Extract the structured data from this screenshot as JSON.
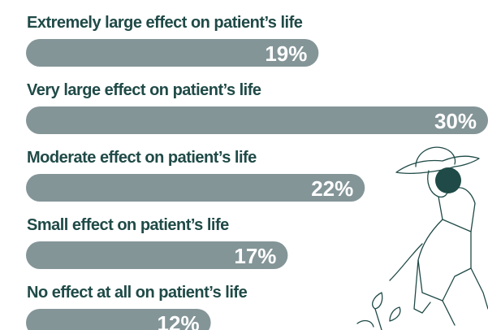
{
  "chart_data": {
    "type": "bar",
    "orientation": "horizontal",
    "categories": [
      "Extremely large effect on patient’s life",
      "Very large effect on patient’s life",
      "Moderate effect on patient’s life",
      "Small effect on patient’s life",
      "No effect at all on patient’s life"
    ],
    "values": [
      19,
      30,
      22,
      17,
      12
    ],
    "value_labels": [
      "19%",
      "30%",
      "22%",
      "17%",
      "12%"
    ],
    "color": "#849598"
  }
}
